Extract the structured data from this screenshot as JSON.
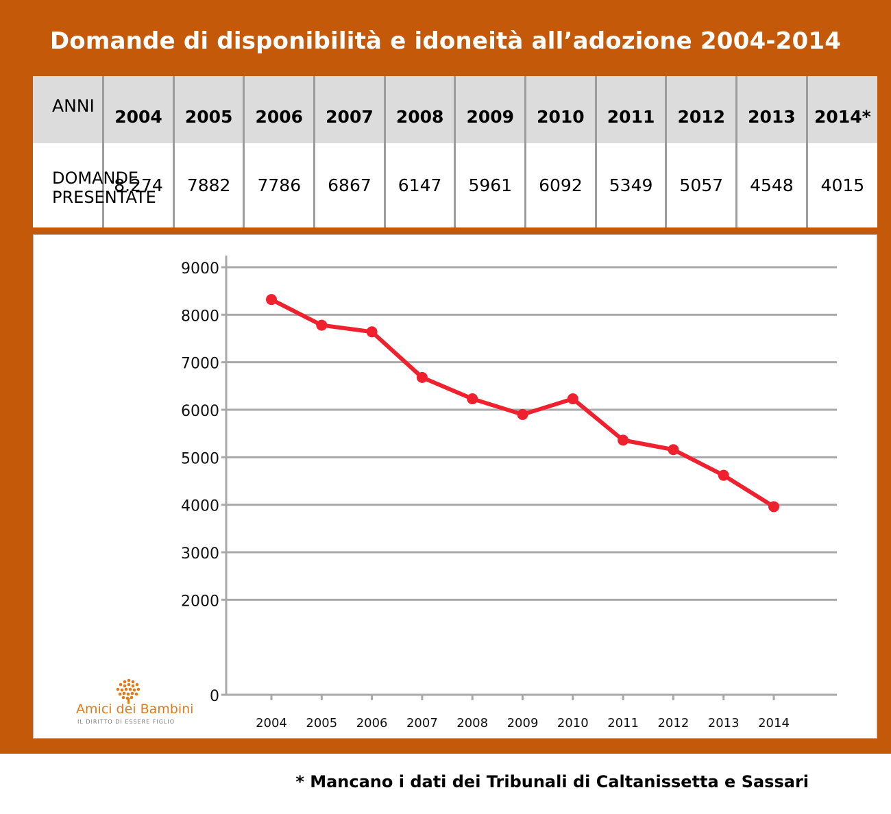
{
  "title": "Domande di disponibilità e idoneità all’adozione 2004-2014",
  "table": {
    "row_label_years": "ANNI",
    "row_label_values": [
      "DOMANDE",
      "PRESENTATE"
    ],
    "years": [
      "2004",
      "2005",
      "2006",
      "2007",
      "2008",
      "2009",
      "2010",
      "2011",
      "2012",
      "2013",
      "2014*"
    ],
    "values": [
      "8.274",
      "7882",
      "7786",
      "6867",
      "6147",
      "5961",
      "6092",
      "5349",
      "5057",
      "4548",
      "4015"
    ]
  },
  "chart_data": {
    "type": "line",
    "x": [
      "2004",
      "2005",
      "2006",
      "2007",
      "2008",
      "2009",
      "2010",
      "2011",
      "2012",
      "2013",
      "2014"
    ],
    "values": [
      8320,
      7780,
      7640,
      6680,
      6230,
      5900,
      6230,
      5360,
      5160,
      4620,
      3960
    ],
    "ylim": [
      0,
      9000
    ],
    "yticks": [
      "9000",
      "8000",
      "7000",
      "6000",
      "5000",
      "4000",
      "3000",
      "2000",
      "0"
    ],
    "grid": true,
    "line_color": "#f0212f",
    "grid_color": "#a9a9a9"
  },
  "logo": {
    "name": "Amici dei Bambini",
    "tagline": "IL DIRITTO DI ESSERE FIGLIO",
    "color": "#e07a1a"
  },
  "footnote": "* Mancano i dati dei Tribunali di Caltanissetta e Sassari"
}
